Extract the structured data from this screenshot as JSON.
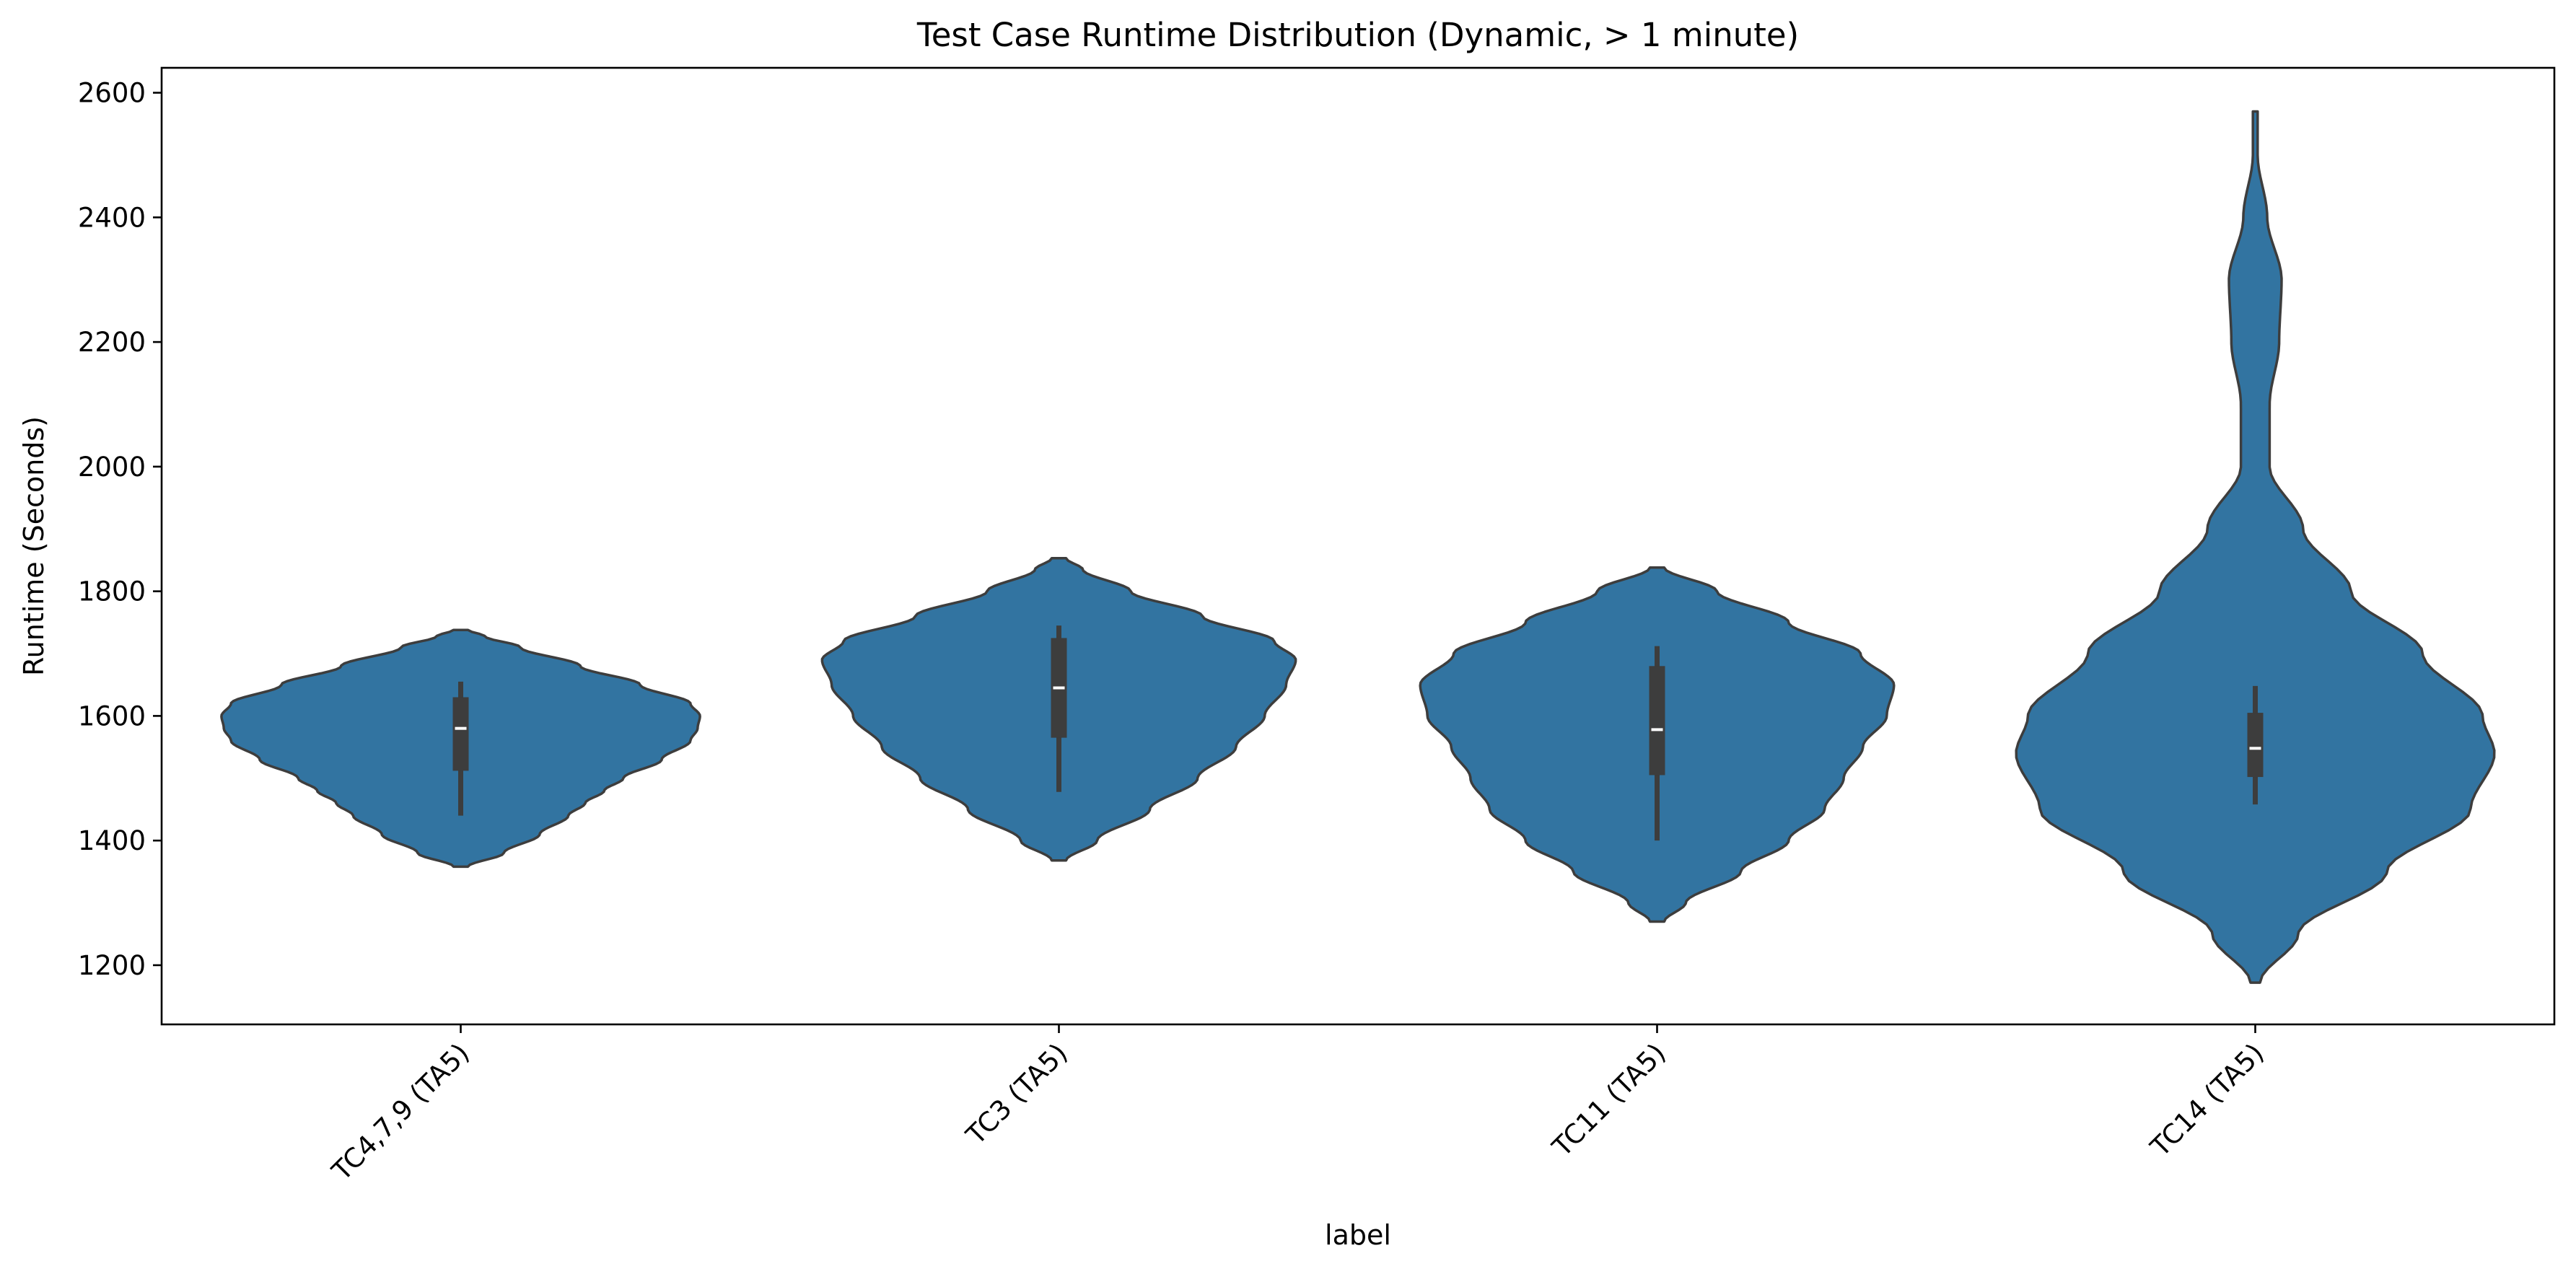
{
  "chart_data": {
    "type": "violin",
    "title": "Test Case Runtime Distribution (Dynamic, > 1 minute)",
    "xlabel": "label",
    "ylabel": "Runtime (Seconds)",
    "ylim": [
      1105,
      2640
    ],
    "yticks": [
      1200,
      1400,
      1600,
      1800,
      2000,
      2200,
      2400,
      2600
    ],
    "yticks_text": [
      "1200",
      "1400",
      "1600",
      "1800",
      "2000",
      "2200",
      "2400",
      "2600"
    ],
    "categories": [
      "TC4,7,9 (TA5)",
      "TC3 (TA5)",
      "TC11 (TA5)",
      "TC14 (TA5)"
    ],
    "grid": false,
    "violin_color": "#3274a1",
    "edge_color": "#3d3d3d",
    "box_color": "#3d3d3d",
    "median_color": "#ffffff",
    "violins": [
      {
        "category": "TC4,7,9 (TA5)",
        "min": 1358,
        "max": 1738,
        "whisker_low": 1440,
        "q1": 1512,
        "median": 1580,
        "q3": 1630,
        "whisker_high": 1655,
        "density_profile": [
          {
            "y": 1358,
            "w": 0.03
          },
          {
            "y": 1380,
            "w": 0.18
          },
          {
            "y": 1410,
            "w": 0.33
          },
          {
            "y": 1440,
            "w": 0.45
          },
          {
            "y": 1460,
            "w": 0.52
          },
          {
            "y": 1480,
            "w": 0.6
          },
          {
            "y": 1500,
            "w": 0.68
          },
          {
            "y": 1530,
            "w": 0.84
          },
          {
            "y": 1560,
            "w": 0.96
          },
          {
            "y": 1580,
            "w": 0.99
          },
          {
            "y": 1600,
            "w": 1.0
          },
          {
            "y": 1620,
            "w": 0.96
          },
          {
            "y": 1650,
            "w": 0.75
          },
          {
            "y": 1680,
            "w": 0.5
          },
          {
            "y": 1710,
            "w": 0.25
          },
          {
            "y": 1728,
            "w": 0.1
          },
          {
            "y": 1738,
            "w": 0.03
          }
        ]
      },
      {
        "category": "TC3 (TA5)",
        "min": 1368,
        "max": 1853,
        "whisker_low": 1478,
        "q1": 1565,
        "median": 1645,
        "q3": 1725,
        "whisker_high": 1745,
        "density_profile": [
          {
            "y": 1368,
            "w": 0.03
          },
          {
            "y": 1400,
            "w": 0.16
          },
          {
            "y": 1450,
            "w": 0.38
          },
          {
            "y": 1500,
            "w": 0.58
          },
          {
            "y": 1550,
            "w": 0.74
          },
          {
            "y": 1600,
            "w": 0.86
          },
          {
            "y": 1650,
            "w": 0.95
          },
          {
            "y": 1690,
            "w": 0.99
          },
          {
            "y": 1720,
            "w": 0.9
          },
          {
            "y": 1760,
            "w": 0.6
          },
          {
            "y": 1800,
            "w": 0.3
          },
          {
            "y": 1835,
            "w": 0.1
          },
          {
            "y": 1853,
            "w": 0.03
          }
        ]
      },
      {
        "category": "TC11 (TA5)",
        "min": 1270,
        "max": 1838,
        "whisker_low": 1400,
        "q1": 1505,
        "median": 1578,
        "q3": 1680,
        "whisker_high": 1712,
        "density_profile": [
          {
            "y": 1270,
            "w": 0.03
          },
          {
            "y": 1300,
            "w": 0.12
          },
          {
            "y": 1350,
            "w": 0.35
          },
          {
            "y": 1400,
            "w": 0.55
          },
          {
            "y": 1450,
            "w": 0.7
          },
          {
            "y": 1500,
            "w": 0.78
          },
          {
            "y": 1550,
            "w": 0.86
          },
          {
            "y": 1600,
            "w": 0.96
          },
          {
            "y": 1650,
            "w": 0.99
          },
          {
            "y": 1700,
            "w": 0.85
          },
          {
            "y": 1750,
            "w": 0.55
          },
          {
            "y": 1800,
            "w": 0.25
          },
          {
            "y": 1838,
            "w": 0.03
          }
        ]
      },
      {
        "category": "TC14 (TA5)",
        "min": 1172,
        "max": 2570,
        "whisker_low": 1458,
        "q1": 1502,
        "median": 1548,
        "q3": 1605,
        "whisker_high": 1648,
        "density_profile": [
          {
            "y": 1172,
            "w": 0.02
          },
          {
            "y": 1250,
            "w": 0.18
          },
          {
            "y": 1350,
            "w": 0.55
          },
          {
            "y": 1450,
            "w": 0.9
          },
          {
            "y": 1540,
            "w": 1.0
          },
          {
            "y": 1600,
            "w": 0.95
          },
          {
            "y": 1700,
            "w": 0.7
          },
          {
            "y": 1800,
            "w": 0.4
          },
          {
            "y": 1900,
            "w": 0.2
          },
          {
            "y": 2000,
            "w": 0.06
          },
          {
            "y": 2100,
            "w": 0.06
          },
          {
            "y": 2200,
            "w": 0.1
          },
          {
            "y": 2300,
            "w": 0.11
          },
          {
            "y": 2400,
            "w": 0.05
          },
          {
            "y": 2500,
            "w": 0.01
          },
          {
            "y": 2570,
            "w": 0.01
          }
        ]
      }
    ]
  }
}
